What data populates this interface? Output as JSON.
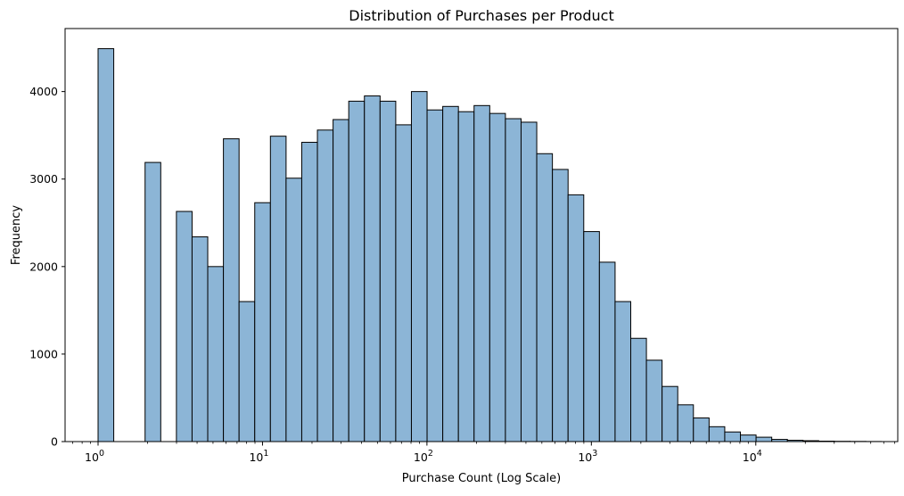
{
  "chart_data": {
    "type": "bar",
    "title": "Distribution of Purchases per Product",
    "xlabel": "Purchase Count (Log Scale)",
    "ylabel": "Frequency",
    "x_scale": "log",
    "xlim": [
      0.63,
      73000
    ],
    "ylim": [
      0,
      4720
    ],
    "grid": false,
    "legend": "none",
    "bar_color": "#8cb5d6",
    "edge_color": "#000000",
    "x_ticks": [
      {
        "base": "10",
        "exp": "0",
        "value": 1
      },
      {
        "base": "10",
        "exp": "1",
        "value": 10
      },
      {
        "base": "10",
        "exp": "2",
        "value": 100
      },
      {
        "base": "10",
        "exp": "3",
        "value": 1000
      },
      {
        "base": "10",
        "exp": "4",
        "value": 10000
      }
    ],
    "y_ticks": [
      "0",
      "1000",
      "2000",
      "3000",
      "4000"
    ],
    "y_tick_values": [
      0,
      1000,
      2000,
      3000,
      4000
    ],
    "bin_edges": [
      1.0,
      1.2453,
      1.5508,
      1.9312,
      2.405,
      2.995,
      3.7297,
      4.6446,
      5.784,
      7.2029,
      8.9699,
      11.1703,
      13.9106,
      17.323,
      21.5726,
      26.8646,
      33.4549,
      41.6619,
      51.8822,
      64.6097,
      80.4595,
      100.197,
      124.776,
      155.386,
      193.504,
      240.974,
      300.088,
      373.704,
      465.379,
      579.544,
      721.716,
      898.765,
      1119.25,
      1393.82,
      1735.74,
      2161.54,
      2691.79,
      3352.11,
      4174.43,
      5198.48,
      6473.72,
      8061.79,
      10039.4,
      12502.3,
      15569.3,
      19388.6,
      24145.0,
      30068.1,
      37444.2,
      46629.9,
      58068.9
    ],
    "values": [
      4490,
      0,
      0,
      3190,
      0,
      2630,
      2340,
      2000,
      3460,
      1600,
      2730,
      3490,
      3010,
      3420,
      3560,
      3680,
      3890,
      3950,
      3890,
      3620,
      4000,
      3790,
      3830,
      3770,
      3840,
      3750,
      3690,
      3650,
      3290,
      3110,
      2820,
      2400,
      2050,
      1600,
      1180,
      930,
      630,
      420,
      270,
      170,
      110,
      75,
      50,
      25,
      15,
      10,
      5,
      3,
      2,
      1
    ]
  }
}
